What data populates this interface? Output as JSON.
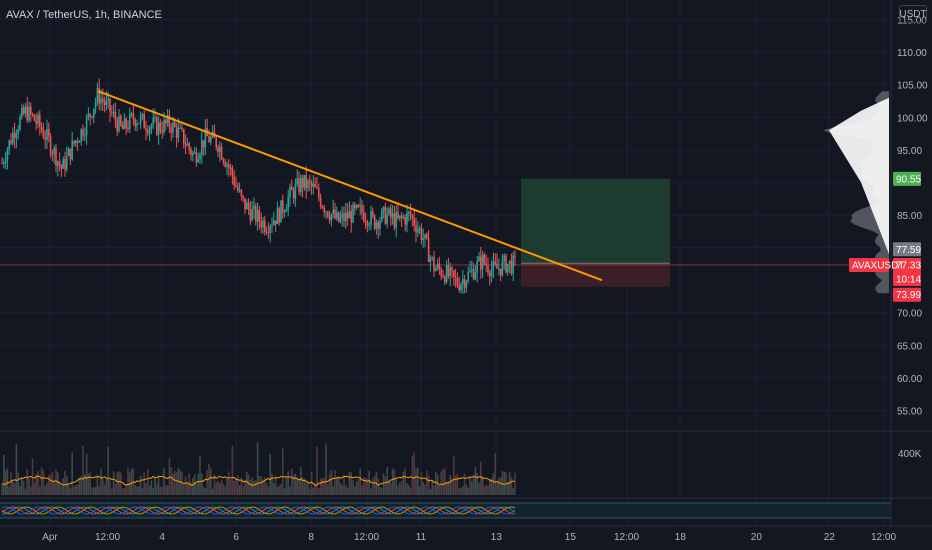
{
  "header": {
    "title": "AVAX / TetherUS, 1h, BINANCE",
    "currency": "USDT"
  },
  "colors": {
    "background": "#131722",
    "up": "#26a69a",
    "down": "#ef5350",
    "trendline": "#ff9800",
    "target_zone": "#1e3b2f",
    "stop_zone": "#3a1f26",
    "text": "#b2b5be",
    "volume_ma": "#ff9800"
  },
  "chart_data": {
    "type": "candlestick",
    "symbol": "AVAXUSDT",
    "interval": "1h",
    "exchange": "BINANCE",
    "x_ticks": [
      "Apr",
      "12:00",
      "4",
      "6",
      "8",
      "12:00",
      "11",
      "13",
      "15",
      "12:00",
      "18",
      "20",
      "22",
      "12:00"
    ],
    "y_ticks": [
      "115.00",
      "110.00",
      "105.00",
      "100.00",
      "95.00",
      "90.55",
      "85.00",
      "77.59",
      "77.33",
      "10:14",
      "73.99",
      "70.00",
      "65.00",
      "60.00",
      "55.00"
    ],
    "ylim": [
      52,
      118
    ],
    "price_path": [
      [
        0,
        93
      ],
      [
        2,
        98
      ],
      [
        4,
        101
      ],
      [
        6,
        99
      ],
      [
        8,
        96
      ],
      [
        10,
        92
      ],
      [
        12,
        96
      ],
      [
        14,
        99
      ],
      [
        16,
        103.5
      ],
      [
        18,
        101
      ],
      [
        20,
        98
      ],
      [
        22,
        100
      ],
      [
        24,
        99
      ],
      [
        26,
        98.5
      ],
      [
        28,
        99
      ],
      [
        30,
        97
      ],
      [
        32,
        94
      ],
      [
        34,
        97
      ],
      [
        36,
        96
      ],
      [
        38,
        92
      ],
      [
        40,
        87
      ],
      [
        42,
        85
      ],
      [
        44,
        83.5
      ],
      [
        46,
        85
      ],
      [
        48,
        88
      ],
      [
        50,
        90
      ],
      [
        52,
        89
      ],
      [
        54,
        86
      ],
      [
        56,
        84
      ],
      [
        58,
        85
      ],
      [
        60,
        85.5
      ],
      [
        62,
        84
      ],
      [
        64,
        85
      ],
      [
        66,
        84
      ],
      [
        68,
        85
      ],
      [
        70,
        82
      ],
      [
        72,
        77
      ],
      [
        74,
        76
      ],
      [
        76,
        74.5
      ],
      [
        78,
        76
      ],
      [
        80,
        78
      ],
      [
        82,
        76.5
      ],
      [
        84,
        77.5
      ],
      [
        85.5,
        77.3
      ]
    ],
    "trendline": {
      "x1": 16,
      "y1": 104,
      "x2": 100,
      "y2": 75
    },
    "position": {
      "entry": 77.59,
      "target": 90.55,
      "stop": 73.99
    },
    "last_price": 77.33,
    "countdown": "10:14",
    "volume_label": "400K",
    "label": "AVAXUSDT"
  }
}
